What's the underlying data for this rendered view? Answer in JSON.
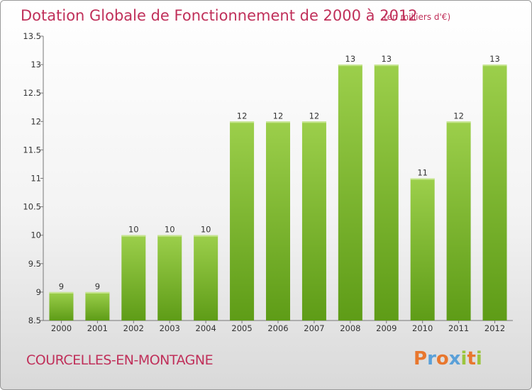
{
  "page": {
    "title": "Dotation Globale de Fonctionnement de 2000 à 2012",
    "subtitle": "(en milliers d'€)",
    "commune": "COURCELLES-EN-MONTAGNE",
    "logo": {
      "text": "Proxiti",
      "letter_colors": [
        "#e8772e",
        "#5aa0d8",
        "#e8772e",
        "#5aa0d8",
        "#9bc53d",
        "#e8772e",
        "#9bc53d"
      ]
    }
  },
  "colors": {
    "accent": "#c0305a",
    "bar_top": "#9ccf4b",
    "bar_bottom": "#5e9c17"
  },
  "chart_data": {
    "type": "bar",
    "title": "Dotation Globale de Fonctionnement de 2000 à 2012",
    "subtitle": "(en milliers d'€)",
    "categories": [
      "2000",
      "2001",
      "2002",
      "2003",
      "2004",
      "2005",
      "2006",
      "2007",
      "2008",
      "2009",
      "2010",
      "2011",
      "2012"
    ],
    "values": [
      9,
      9,
      10,
      10,
      10,
      12,
      12,
      12,
      13,
      13,
      11,
      12,
      13
    ],
    "ylim": [
      8.5,
      13.5
    ],
    "yticks": [
      "8.5",
      "9",
      "9.5",
      "10",
      "10.5",
      "11",
      "11.5",
      "12",
      "12.5",
      "13",
      "13.5"
    ],
    "grid": false,
    "xlabel": "",
    "ylabel": ""
  }
}
